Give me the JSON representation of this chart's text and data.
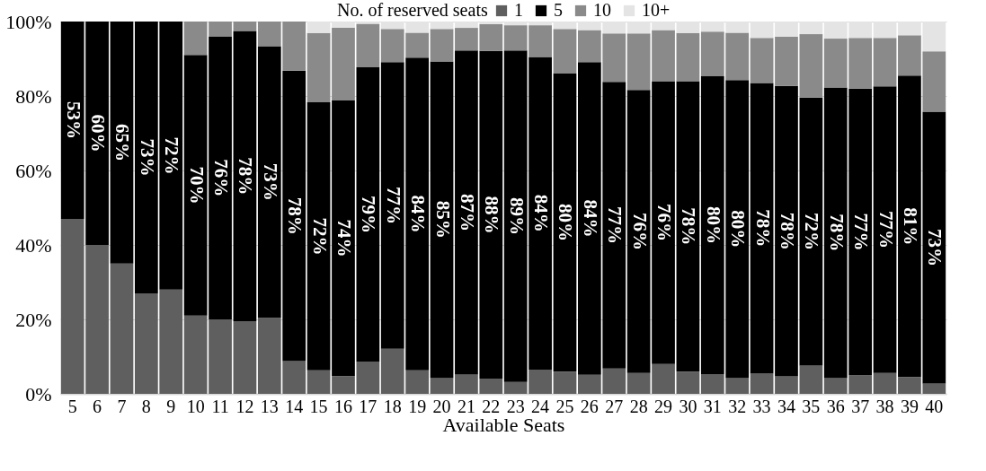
{
  "chart_data": {
    "type": "bar",
    "stacked": true,
    "xlabel": "Available Seats",
    "legend_title": "No. of reserved seats",
    "legend": "top",
    "grid": "y",
    "categories": [
      "5",
      "6",
      "7",
      "8",
      "9",
      "10",
      "11",
      "12",
      "13",
      "14",
      "15",
      "16",
      "17",
      "18",
      "19",
      "20",
      "21",
      "22",
      "23",
      "24",
      "25",
      "26",
      "27",
      "28",
      "29",
      "30",
      "31",
      "32",
      "33",
      "34",
      "35",
      "36",
      "37",
      "38",
      "39",
      "40"
    ],
    "ylim": [
      0,
      100
    ],
    "yticks": [
      {
        "value": 0,
        "label": "0%"
      },
      {
        "value": 20,
        "label": "20%"
      },
      {
        "value": 40,
        "label": "40%"
      },
      {
        "value": 60,
        "label": "60%"
      },
      {
        "value": 80,
        "label": "80%"
      },
      {
        "value": 100,
        "label": "100%"
      }
    ],
    "series": [
      {
        "name": "1",
        "color": "#5f5f5f",
        "values": [
          47,
          40,
          35,
          27,
          28,
          21,
          20,
          19.5,
          20.4,
          8.8,
          6.3,
          4.8,
          8.7,
          12.1,
          6.3,
          4.3,
          5.2,
          4.1,
          3.2,
          6.5,
          6,
          5.1,
          6.8,
          5.6,
          8,
          6,
          5.3,
          4.3,
          5.5,
          4.7,
          7.6,
          4.3,
          5,
          5.6,
          4.5,
          2.8
        ]
      },
      {
        "name": "5",
        "color": "#000000",
        "values": [
          53,
          60,
          65,
          73,
          72,
          70,
          76,
          78,
          73,
          78,
          72,
          74,
          79,
          77,
          84,
          85,
          87,
          88,
          89,
          84,
          80,
          84,
          77,
          76,
          76,
          78,
          80,
          80,
          78,
          78,
          72,
          78,
          77,
          77,
          81,
          73
        ],
        "value_labels": [
          "53%",
          "60%",
          "65%",
          "73%",
          "72%",
          "70%",
          "76%",
          "78%",
          "73%",
          "78%",
          "72%",
          "74%",
          "79%",
          "77%",
          "84%",
          "85%",
          "87%",
          "88%",
          "89%",
          "84%",
          "80%",
          "84%",
          "77%",
          "76%",
          "76%",
          "78%",
          "80%",
          "80%",
          "78%",
          "78%",
          "72%",
          "78%",
          "77%",
          "77%",
          "81%",
          "73%"
        ]
      },
      {
        "name": "10",
        "color": "#8a8a8a",
        "values": [
          0,
          0,
          0,
          0,
          0,
          9,
          4,
          2.5,
          6.6,
          13.2,
          18.6,
          19.6,
          11.7,
          8.9,
          6.7,
          8.7,
          6.1,
          7.2,
          6.8,
          8.5,
          12,
          8.6,
          13,
          15.2,
          13.7,
          12.9,
          12,
          12.7,
          12.1,
          13.2,
          17,
          13.1,
          13.6,
          13,
          10.8,
          16.2
        ]
      },
      {
        "name": "10+",
        "color": "#e4e4e4",
        "values": [
          0,
          0,
          0,
          0,
          0,
          0,
          0,
          0,
          0,
          0,
          3.1,
          1.6,
          0.6,
          2,
          3,
          2,
          1.7,
          0.7,
          1,
          1,
          2,
          2.3,
          3.2,
          3.2,
          2.3,
          3.1,
          2.7,
          3,
          4.4,
          4.1,
          3.4,
          4.6,
          4.4,
          4.4,
          3.7,
          8
        ]
      }
    ]
  }
}
